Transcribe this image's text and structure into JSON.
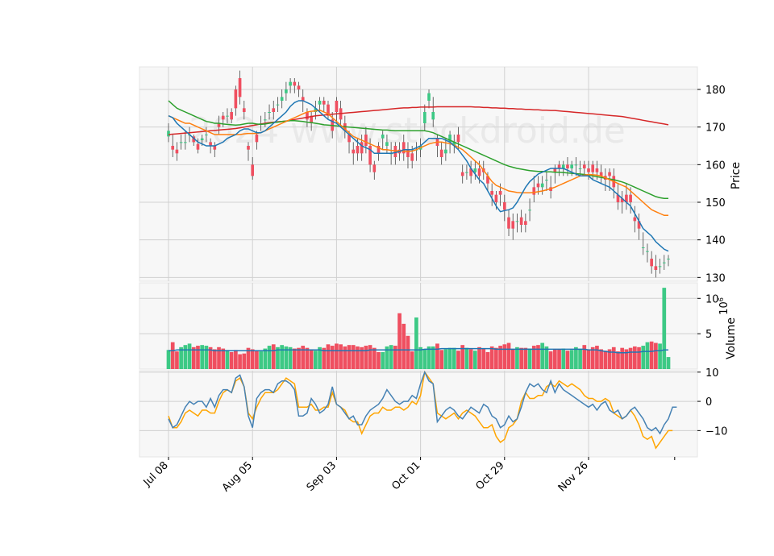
{
  "chart_data": {
    "type": "candlestick",
    "watermark": "2024 www.stockdroid.de",
    "x_tick_labels": [
      "Jul 08",
      "Aug 05",
      "Sep 03",
      "Oct 01",
      "Oct 29",
      "Nov 26"
    ],
    "x_tick_positions": [
      0,
      20,
      40,
      60,
      80,
      100
    ],
    "num_bars": 120,
    "price_panel": {
      "ylabel": "Price",
      "ylim": [
        129,
        186
      ],
      "yticks": [
        "130",
        "140",
        "150",
        "160",
        "170",
        "180"
      ],
      "ytick_values": [
        130,
        140,
        150,
        160,
        170,
        180
      ],
      "moving_averages": [
        {
          "color": "#1f77b4",
          "period": 10
        },
        {
          "color": "#ff7f0e",
          "period": 20
        },
        {
          "color": "#2ca02c",
          "period": 50
        },
        {
          "color": "#d62728",
          "period": 200
        }
      ]
    },
    "volume_panel": {
      "ylabel": "Volume",
      "exponent": "6",
      "ylim": [
        0,
        12.2
      ],
      "yticks": [
        "5",
        "10"
      ],
      "ytick_values": [
        5,
        10
      ],
      "ma_color": "#1f77b4"
    },
    "oscillator_panel": {
      "ylim": [
        -19,
        10.5
      ],
      "yticks": [
        "−10",
        "0",
        "10"
      ],
      "ytick_values": [
        -10,
        0,
        10
      ],
      "line_colors": [
        "#4682b4",
        "#ffa500"
      ]
    },
    "colors": {
      "up": "#3dc985",
      "down": "#ef4f60",
      "background": "#f7f7f7",
      "grid": "#d0d0d0"
    },
    "open": [
      167.5,
      165,
      164,
      166,
      166,
      168,
      167.5,
      165.5,
      166.5,
      168,
      166,
      165,
      171,
      173,
      173,
      174,
      180,
      183,
      175,
      165,
      160,
      168,
      171,
      172,
      174,
      175,
      176,
      177,
      179,
      181,
      182,
      181,
      178,
      174,
      173,
      174,
      176,
      177,
      176,
      172,
      177,
      175,
      171,
      168,
      164,
      165,
      166,
      168,
      165,
      160,
      165,
      167,
      165,
      163,
      165,
      164,
      166,
      164,
      163,
      164,
      164,
      171,
      177,
      172,
      167,
      164,
      163,
      166,
      165,
      168,
      158,
      158,
      159,
      158,
      159,
      159,
      157,
      153,
      152,
      153,
      150,
      146,
      145,
      145,
      146,
      145,
      148,
      154,
      155,
      154,
      156,
      154,
      159,
      160,
      159,
      160,
      159,
      160,
      159,
      160,
      159,
      160,
      159,
      158,
      157,
      158,
      157,
      152,
      151,
      152,
      152,
      146,
      145,
      138,
      137,
      135,
      133,
      133,
      134,
      135
    ],
    "close": [
      169,
      164,
      163,
      166,
      166,
      168,
      166,
      164,
      167,
      168,
      165,
      164,
      170,
      172,
      173,
      172,
      175,
      178,
      174,
      164,
      157,
      166,
      171,
      172,
      174,
      174,
      176,
      178,
      180,
      182,
      181,
      180,
      177,
      172,
      171,
      175,
      177,
      176,
      173,
      169,
      174,
      172,
      169,
      166,
      163,
      163,
      163,
      165,
      160,
      158,
      163,
      168,
      166,
      163,
      162,
      163,
      163,
      162,
      161,
      164,
      165,
      174,
      179,
      174,
      165,
      162,
      164,
      168,
      166,
      166,
      157,
      158,
      157,
      159,
      157,
      158,
      155,
      152,
      150,
      152,
      148,
      143,
      143,
      145,
      144,
      144,
      148,
      152,
      154,
      155,
      156,
      153,
      158,
      159,
      160,
      159,
      160,
      160,
      159,
      159,
      158,
      158,
      158,
      157,
      156,
      157,
      154,
      150,
      150,
      150,
      150,
      145,
      143,
      138,
      137,
      133,
      132,
      133,
      134,
      135
    ],
    "high": [
      171,
      168,
      166,
      168,
      169,
      170,
      168,
      167,
      168,
      170,
      167,
      166,
      173,
      174,
      175,
      175,
      181,
      185,
      177,
      166,
      162,
      169,
      173,
      174,
      176,
      177,
      178,
      180,
      182,
      183,
      183,
      182,
      180,
      175,
      174,
      177,
      178,
      178,
      177,
      174,
      178,
      177,
      173,
      169,
      166,
      167,
      168,
      170,
      167,
      161,
      166,
      169,
      168,
      166,
      166,
      166,
      168,
      166,
      165,
      166,
      167,
      176,
      180,
      178,
      168,
      166,
      167,
      169,
      168,
      170,
      160,
      160,
      161,
      161,
      161,
      161,
      158,
      155,
      153,
      155,
      152,
      148,
      147,
      147,
      148,
      147,
      151,
      157,
      157,
      157,
      158,
      157,
      160,
      161,
      161,
      162,
      161,
      162,
      161,
      161,
      161,
      161,
      161,
      160,
      159,
      159,
      159,
      155,
      153,
      155,
      154,
      149,
      147,
      142,
      139,
      137,
      136,
      135,
      136,
      136
    ],
    "low": [
      166,
      162,
      161,
      164,
      164,
      166,
      165,
      163,
      165,
      166,
      163,
      162,
      168,
      170,
      171,
      171,
      173,
      176,
      172,
      161,
      156,
      164,
      169,
      170,
      172,
      172,
      174,
      175,
      177,
      179,
      179,
      178,
      174,
      170,
      169,
      172,
      174,
      174,
      172,
      167,
      171,
      170,
      167,
      163,
      160,
      161,
      161,
      163,
      158,
      156,
      161,
      164,
      163,
      160,
      160,
      161,
      161,
      159,
      159,
      161,
      162,
      169,
      175,
      170,
      162,
      160,
      161,
      163,
      163,
      164,
      155,
      156,
      155,
      156,
      155,
      156,
      153,
      149,
      148,
      149,
      145,
      141,
      140,
      142,
      142,
      142,
      145,
      150,
      152,
      152,
      153,
      151,
      155,
      157,
      157,
      157,
      157,
      157,
      157,
      157,
      156,
      156,
      156,
      155,
      153,
      153,
      151,
      148,
      147,
      148,
      147,
      142,
      140,
      136,
      134,
      131,
      130,
      131,
      132,
      133
    ],
    "volume": [
      2.7,
      3.8,
      2.5,
      3.1,
      3.4,
      3.6,
      3.1,
      3.3,
      3.4,
      3.3,
      3.1,
      2.8,
      3.1,
      2.9,
      2.7,
      2.4,
      2.7,
      2.1,
      2.2,
      3.0,
      2.8,
      2.6,
      2.5,
      2.9,
      3.3,
      3.5,
      3.1,
      3.4,
      3.2,
      3.1,
      2.9,
      3.0,
      3.3,
      3.0,
      2.8,
      2.6,
      3.1,
      3.0,
      3.5,
      3.3,
      3.6,
      3.5,
      3.2,
      3.4,
      3.4,
      3.2,
      3.1,
      3.3,
      3.4,
      3.0,
      2.4,
      2.4,
      3.2,
      3.4,
      3.3,
      7.9,
      6.4,
      4.7,
      2.5,
      7.3,
      3.1,
      2.8,
      3.2,
      3.2,
      3.6,
      2.7,
      2.8,
      3.0,
      3.0,
      2.6,
      3.4,
      3.0,
      2.8,
      2.6,
      3.1,
      2.9,
      2.4,
      3.2,
      3.0,
      3.3,
      3.5,
      3.7,
      2.8,
      3.1,
      3.0,
      3.0,
      2.9,
      3.3,
      3.4,
      3.7,
      3.2,
      2.5,
      2.8,
      2.8,
      2.9,
      2.6,
      2.7,
      3.1,
      2.8,
      3.4,
      2.8,
      3.1,
      3.3,
      2.8,
      2.6,
      2.8,
      3.1,
      2.5,
      3.0,
      2.8,
      3.0,
      3.2,
      3.1,
      3.3,
      3.8,
      3.9,
      3.7,
      3.6,
      11.5,
      1.7
    ],
    "volume_ma": [
      2.6,
      2.6,
      2.7,
      2.7,
      2.7,
      2.7,
      2.7,
      2.7,
      2.7,
      2.7,
      2.7,
      2.6,
      2.6,
      2.6,
      2.6,
      2.6,
      2.6,
      2.6,
      2.6,
      2.6,
      2.6,
      2.6,
      2.6,
      2.6,
      2.6,
      2.6,
      2.7,
      2.7,
      2.7,
      2.7,
      2.7,
      2.7,
      2.7,
      2.7,
      2.7,
      2.7,
      2.7,
      2.6,
      2.6,
      2.6,
      2.6,
      2.6,
      2.6,
      2.6,
      2.6,
      2.6,
      2.6,
      2.6,
      2.7,
      2.7,
      2.7,
      2.7,
      2.7,
      2.7,
      2.7,
      2.7,
      2.7,
      2.7,
      2.7,
      2.7,
      2.7,
      2.8,
      2.8,
      2.8,
      2.8,
      2.9,
      2.9,
      2.9,
      2.9,
      2.9,
      2.9,
      2.9,
      2.9,
      2.9,
      2.9,
      2.9,
      2.9,
      2.9,
      2.8,
      2.8,
      2.8,
      2.8,
      2.8,
      2.8,
      2.8,
      2.8,
      2.8,
      2.8,
      2.8,
      2.8,
      2.8,
      2.8,
      2.8,
      2.8,
      2.8,
      2.8,
      2.8,
      2.8,
      2.8,
      2.8,
      2.7,
      2.7,
      2.7,
      2.6,
      2.5,
      2.4,
      2.4,
      2.3,
      2.3,
      2.3,
      2.4,
      2.4,
      2.4,
      2.5,
      2.5,
      2.5,
      2.6,
      2.6,
      2.7,
      2.7
    ],
    "osc_blue": [
      -6,
      -9,
      -8,
      -5,
      -2,
      0,
      -1,
      0,
      0,
      -2,
      1,
      -2,
      2,
      4,
      4,
      3,
      8,
      9,
      5,
      -5,
      -9,
      1,
      3,
      4,
      4,
      3,
      6,
      7,
      7,
      6,
      4,
      -5,
      -5,
      -4,
      1,
      -1,
      -4,
      -3,
      -1,
      5,
      -1,
      -2,
      -4,
      -6,
      -5,
      -8,
      -8,
      -5,
      -3,
      -2,
      -1,
      1,
      4,
      2,
      0,
      -1,
      0,
      0,
      2,
      1,
      6,
      10,
      7,
      6,
      -7,
      -5,
      -3,
      -2,
      -3,
      -5,
      -6,
      -4,
      -2,
      -3,
      -4,
      -1,
      -2,
      -5,
      -6,
      -9,
      -8,
      -5,
      -7,
      -6,
      -2,
      3,
      6,
      5,
      6,
      4,
      3,
      7,
      3,
      6,
      4,
      3,
      2,
      1,
      0,
      -1,
      -2,
      -1,
      -3,
      -1,
      0,
      -3,
      -4,
      -3,
      -6,
      -5,
      -3,
      -2,
      -4,
      -6,
      -9,
      -10,
      -9,
      -11,
      -8,
      -6,
      -2,
      -2
    ],
    "osc_orange": [
      -5,
      -9,
      -9,
      -7,
      -4,
      -3,
      -4,
      -5,
      -3,
      -3,
      -4,
      -4,
      0,
      3,
      4,
      3,
      7,
      8,
      5,
      -4,
      -6,
      -2,
      1,
      3,
      3,
      3,
      4,
      6,
      8,
      7,
      6,
      -2,
      -2,
      -2,
      -1,
      -3,
      -3,
      -2,
      -2,
      3,
      -1,
      -2,
      -3,
      -6,
      -7,
      -7,
      -11,
      -8,
      -5,
      -4,
      -4,
      -2,
      -3,
      -3,
      -2,
      -2,
      -3,
      -2,
      0,
      -1,
      2,
      10,
      8,
      6,
      -4,
      -5,
      -6,
      -5,
      -4,
      -6,
      -4,
      -3,
      -4,
      -5,
      -7,
      -9,
      -9,
      -8,
      -12,
      -14,
      -13,
      -9,
      -8,
      -6,
      0,
      3,
      1,
      1,
      2,
      2,
      5,
      6,
      5,
      7,
      6,
      5,
      6,
      5,
      4,
      2,
      1,
      1,
      0,
      0,
      1,
      0,
      -4,
      -5,
      -6,
      -5,
      -3,
      -5,
      -8,
      -12,
      -13,
      -12,
      -16,
      -14,
      -12,
      -10,
      -10
    ],
    "ma_blue": [
      173,
      172.5,
      171,
      170,
      169,
      168,
      167,
      166,
      165.5,
      165,
      165,
      165,
      165.5,
      166,
      167,
      167.5,
      168,
      169,
      169.5,
      169.5,
      169,
      168.5,
      168.5,
      169,
      170,
      171,
      172,
      173,
      174,
      175.5,
      176.5,
      177,
      177,
      176.5,
      176,
      175,
      174,
      173,
      172,
      171.5,
      171,
      170,
      169,
      168,
      167,
      166,
      165,
      164.5,
      164,
      163,
      163,
      163,
      163,
      163,
      163.2,
      163.5,
      164,
      164,
      164,
      164.5,
      165,
      166,
      167,
      167,
      167,
      167,
      166.5,
      166,
      165,
      164,
      162.5,
      161,
      159,
      157.5,
      156,
      155,
      153,
      151,
      149,
      147.5,
      147.8,
      148,
      148.5,
      150,
      152,
      154,
      155.5,
      156.5,
      157.5,
      158,
      158.5,
      159,
      159,
      159,
      159,
      158.5,
      158,
      157.5,
      157,
      157,
      157,
      156,
      155.5,
      155,
      154.5,
      154,
      153,
      152,
      151,
      150,
      149,
      147,
      145,
      143,
      142,
      141,
      139.5,
      138.5,
      137.5,
      137
    ],
    "ma_orange": [
      173,
      172.5,
      172,
      171.5,
      171,
      171,
      170.5,
      170,
      169.5,
      169,
      168.5,
      168,
      168,
      168,
      168,
      168,
      168,
      168,
      168.2,
      168.3,
      168.3,
      168.3,
      168.5,
      169,
      169.5,
      170,
      170.5,
      171,
      171.5,
      172,
      172.5,
      173,
      173.5,
      174,
      174.2,
      174.3,
      174.5,
      174,
      173.5,
      172.5,
      171.5,
      170.5,
      169.5,
      168.5,
      167.5,
      167,
      166.5,
      166,
      165.5,
      165,
      164.5,
      164,
      164,
      163.8,
      163.7,
      163.7,
      163.6,
      163.5,
      163.6,
      164,
      164.5,
      165,
      165.5,
      165.8,
      166,
      166,
      165.8,
      165.6,
      165.2,
      164.6,
      164,
      163,
      162,
      161,
      160,
      158.5,
      157,
      155.5,
      154.5,
      154,
      153.5,
      153,
      152.8,
      152.6,
      152.5,
      152.5,
      152.5,
      152.6,
      152.8,
      153,
      153.3,
      153.6,
      154,
      154.5,
      155,
      155.5,
      156,
      156.5,
      157,
      157.2,
      157.4,
      157.3,
      157.2,
      157,
      156.5,
      156,
      155.5,
      155,
      154.5,
      154,
      153,
      152,
      151,
      150,
      149,
      148,
      147.5,
      147,
      146.5,
      146.5
    ],
    "ma_green": [
      177,
      176,
      175,
      174.5,
      174,
      173.5,
      173,
      172.5,
      172,
      171.5,
      171.3,
      171,
      171,
      170.8,
      170.7,
      170.6,
      170.5,
      170.6,
      170.8,
      171,
      171,
      170.8,
      170.7,
      170.8,
      171,
      171.2,
      171.3,
      171.5,
      171.6,
      171.7,
      171.7,
      171.6,
      171.5,
      171.3,
      171.2,
      171,
      170.8,
      170.6,
      170.5,
      170.4,
      170.3,
      170.2,
      170.1,
      170,
      169.9,
      169.8,
      169.7,
      169.6,
      169.5,
      169.4,
      169.3,
      169.2,
      169.2,
      169.1,
      169,
      169,
      169,
      169,
      169,
      169,
      169,
      169,
      168.8,
      168.5,
      168,
      167.5,
      167,
      166.5,
      166,
      165.5,
      165,
      164.5,
      164,
      163.5,
      163,
      162.5,
      162,
      161.5,
      161,
      160.5,
      160,
      159.6,
      159.3,
      159,
      158.8,
      158.6,
      158.4,
      158.3,
      158.2,
      158.2,
      158.1,
      158.1,
      158,
      158,
      157.9,
      157.8,
      157.7,
      157.6,
      157.5,
      157.4,
      157.2,
      157,
      156.8,
      156.6,
      156.4,
      156.2,
      156,
      155.7,
      155.4,
      155,
      154.5,
      154,
      153.5,
      153,
      152.5,
      152,
      151.5,
      151.2,
      151,
      151
    ],
    "ma_red": [
      168,
      168.1,
      168.2,
      168.3,
      168.4,
      168.5,
      168.6,
      168.7,
      168.8,
      168.9,
      169,
      169.1,
      169.2,
      169.3,
      169.4,
      169.5,
      169.6,
      169.8,
      170,
      170.2,
      170.4,
      170.6,
      170.8,
      171,
      171.2,
      171.3,
      171.4,
      171.5,
      171.6,
      171.8,
      172,
      172.2,
      172.4,
      172.6,
      172.8,
      173,
      173.1,
      173.2,
      173.3,
      173.4,
      173.5,
      173.6,
      173.7,
      173.8,
      173.9,
      174,
      174.1,
      174.2,
      174.3,
      174.4,
      174.5,
      174.6,
      174.7,
      174.8,
      174.9,
      175,
      175.1,
      175.1,
      175.2,
      175.2,
      175.3,
      175.3,
      175.3,
      175.3,
      175.4,
      175.4,
      175.4,
      175.4,
      175.4,
      175.4,
      175.4,
      175.4,
      175.4,
      175.3,
      175.3,
      175.2,
      175.2,
      175.1,
      175.1,
      175,
      175,
      174.9,
      174.9,
      174.8,
      174.8,
      174.7,
      174.7,
      174.6,
      174.6,
      174.5,
      174.5,
      174.4,
      174.4,
      174.3,
      174.2,
      174.1,
      174,
      173.9,
      173.8,
      173.7,
      173.6,
      173.5,
      173.4,
      173.3,
      173.2,
      173.1,
      173,
      172.9,
      172.8,
      172.6,
      172.4,
      172.2,
      172,
      171.8,
      171.6,
      171.4,
      171.2,
      171,
      170.8,
      170.6
    ]
  }
}
